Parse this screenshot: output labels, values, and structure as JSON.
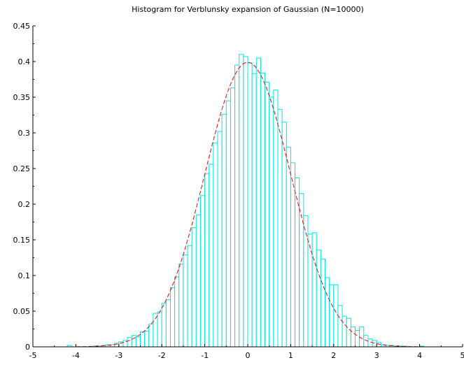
{
  "chart_data": {
    "type": "bar",
    "title": "Histogram for Verblunsky expansion of Gaussian (N=10000)",
    "xlabel": "",
    "ylabel": "",
    "xlim": [
      -5,
      5
    ],
    "ylim": [
      0,
      0.45
    ],
    "grid": false,
    "bin_width": 0.1,
    "xticks": [
      "-5",
      "-4",
      "-3",
      "-2",
      "-1",
      "0",
      "1",
      "2",
      "3",
      "4",
      "5"
    ],
    "xtick_values": [
      -5,
      -4,
      -3,
      -2,
      -1,
      0,
      1,
      2,
      3,
      4,
      5
    ],
    "yticks": [
      "0",
      "0.05",
      "0.1",
      "0.15",
      "0.2",
      "0.25",
      "0.3",
      "0.35",
      "0.4",
      "0.45"
    ],
    "ytick_values": [
      0,
      0.05,
      0.1,
      0.15,
      0.2,
      0.25,
      0.3,
      0.35,
      0.4,
      0.45
    ],
    "series": [
      {
        "type": "histogram",
        "color": "#00e5e5",
        "bin_left_edges": [
          -4.2,
          -3.6,
          -3.5,
          -3.4,
          -3.3,
          -3.2,
          -3.1,
          -3.0,
          -2.9,
          -2.8,
          -2.7,
          -2.6,
          -2.5,
          -2.4,
          -2.3,
          -2.2,
          -2.1,
          -2.0,
          -1.9,
          -1.8,
          -1.7,
          -1.6,
          -1.5,
          -1.4,
          -1.3,
          -1.2,
          -1.1,
          -1.0,
          -0.9,
          -0.8,
          -0.7,
          -0.6,
          -0.5,
          -0.4,
          -0.3,
          -0.2,
          -0.1,
          0.0,
          0.1,
          0.2,
          0.3,
          0.4,
          0.5,
          0.6,
          0.7,
          0.8,
          0.9,
          1.0,
          1.1,
          1.2,
          1.3,
          1.4,
          1.5,
          1.6,
          1.7,
          1.8,
          1.9,
          2.0,
          2.1,
          2.2,
          2.3,
          2.4,
          2.5,
          2.6,
          2.7,
          2.8,
          2.9,
          3.0,
          3.1,
          3.2,
          3.3,
          3.4,
          3.5,
          3.6,
          4.0
        ],
        "values": [
          0.002,
          0.001,
          0.001,
          0.002,
          0.003,
          0.003,
          0.005,
          0.007,
          0.009,
          0.013,
          0.016,
          0.014,
          0.021,
          0.022,
          0.032,
          0.047,
          0.049,
          0.061,
          0.066,
          0.083,
          0.098,
          0.116,
          0.129,
          0.142,
          0.167,
          0.185,
          0.212,
          0.243,
          0.256,
          0.286,
          0.302,
          0.326,
          0.345,
          0.363,
          0.395,
          0.41,
          0.407,
          0.398,
          0.383,
          0.405,
          0.384,
          0.371,
          0.35,
          0.36,
          0.333,
          0.315,
          0.28,
          0.258,
          0.237,
          0.215,
          0.184,
          0.158,
          0.16,
          0.136,
          0.123,
          0.097,
          0.087,
          0.087,
          0.058,
          0.043,
          0.04,
          0.028,
          0.023,
          0.028,
          0.016,
          0.011,
          0.009,
          0.006,
          0.003,
          0.002,
          0.002,
          0.001,
          0.001,
          0.001,
          0.001
        ]
      },
      {
        "type": "line",
        "style": "dashed",
        "color": "#ff0000",
        "function": "standard normal pdf",
        "x_range": [
          -4,
          4
        ]
      }
    ]
  }
}
